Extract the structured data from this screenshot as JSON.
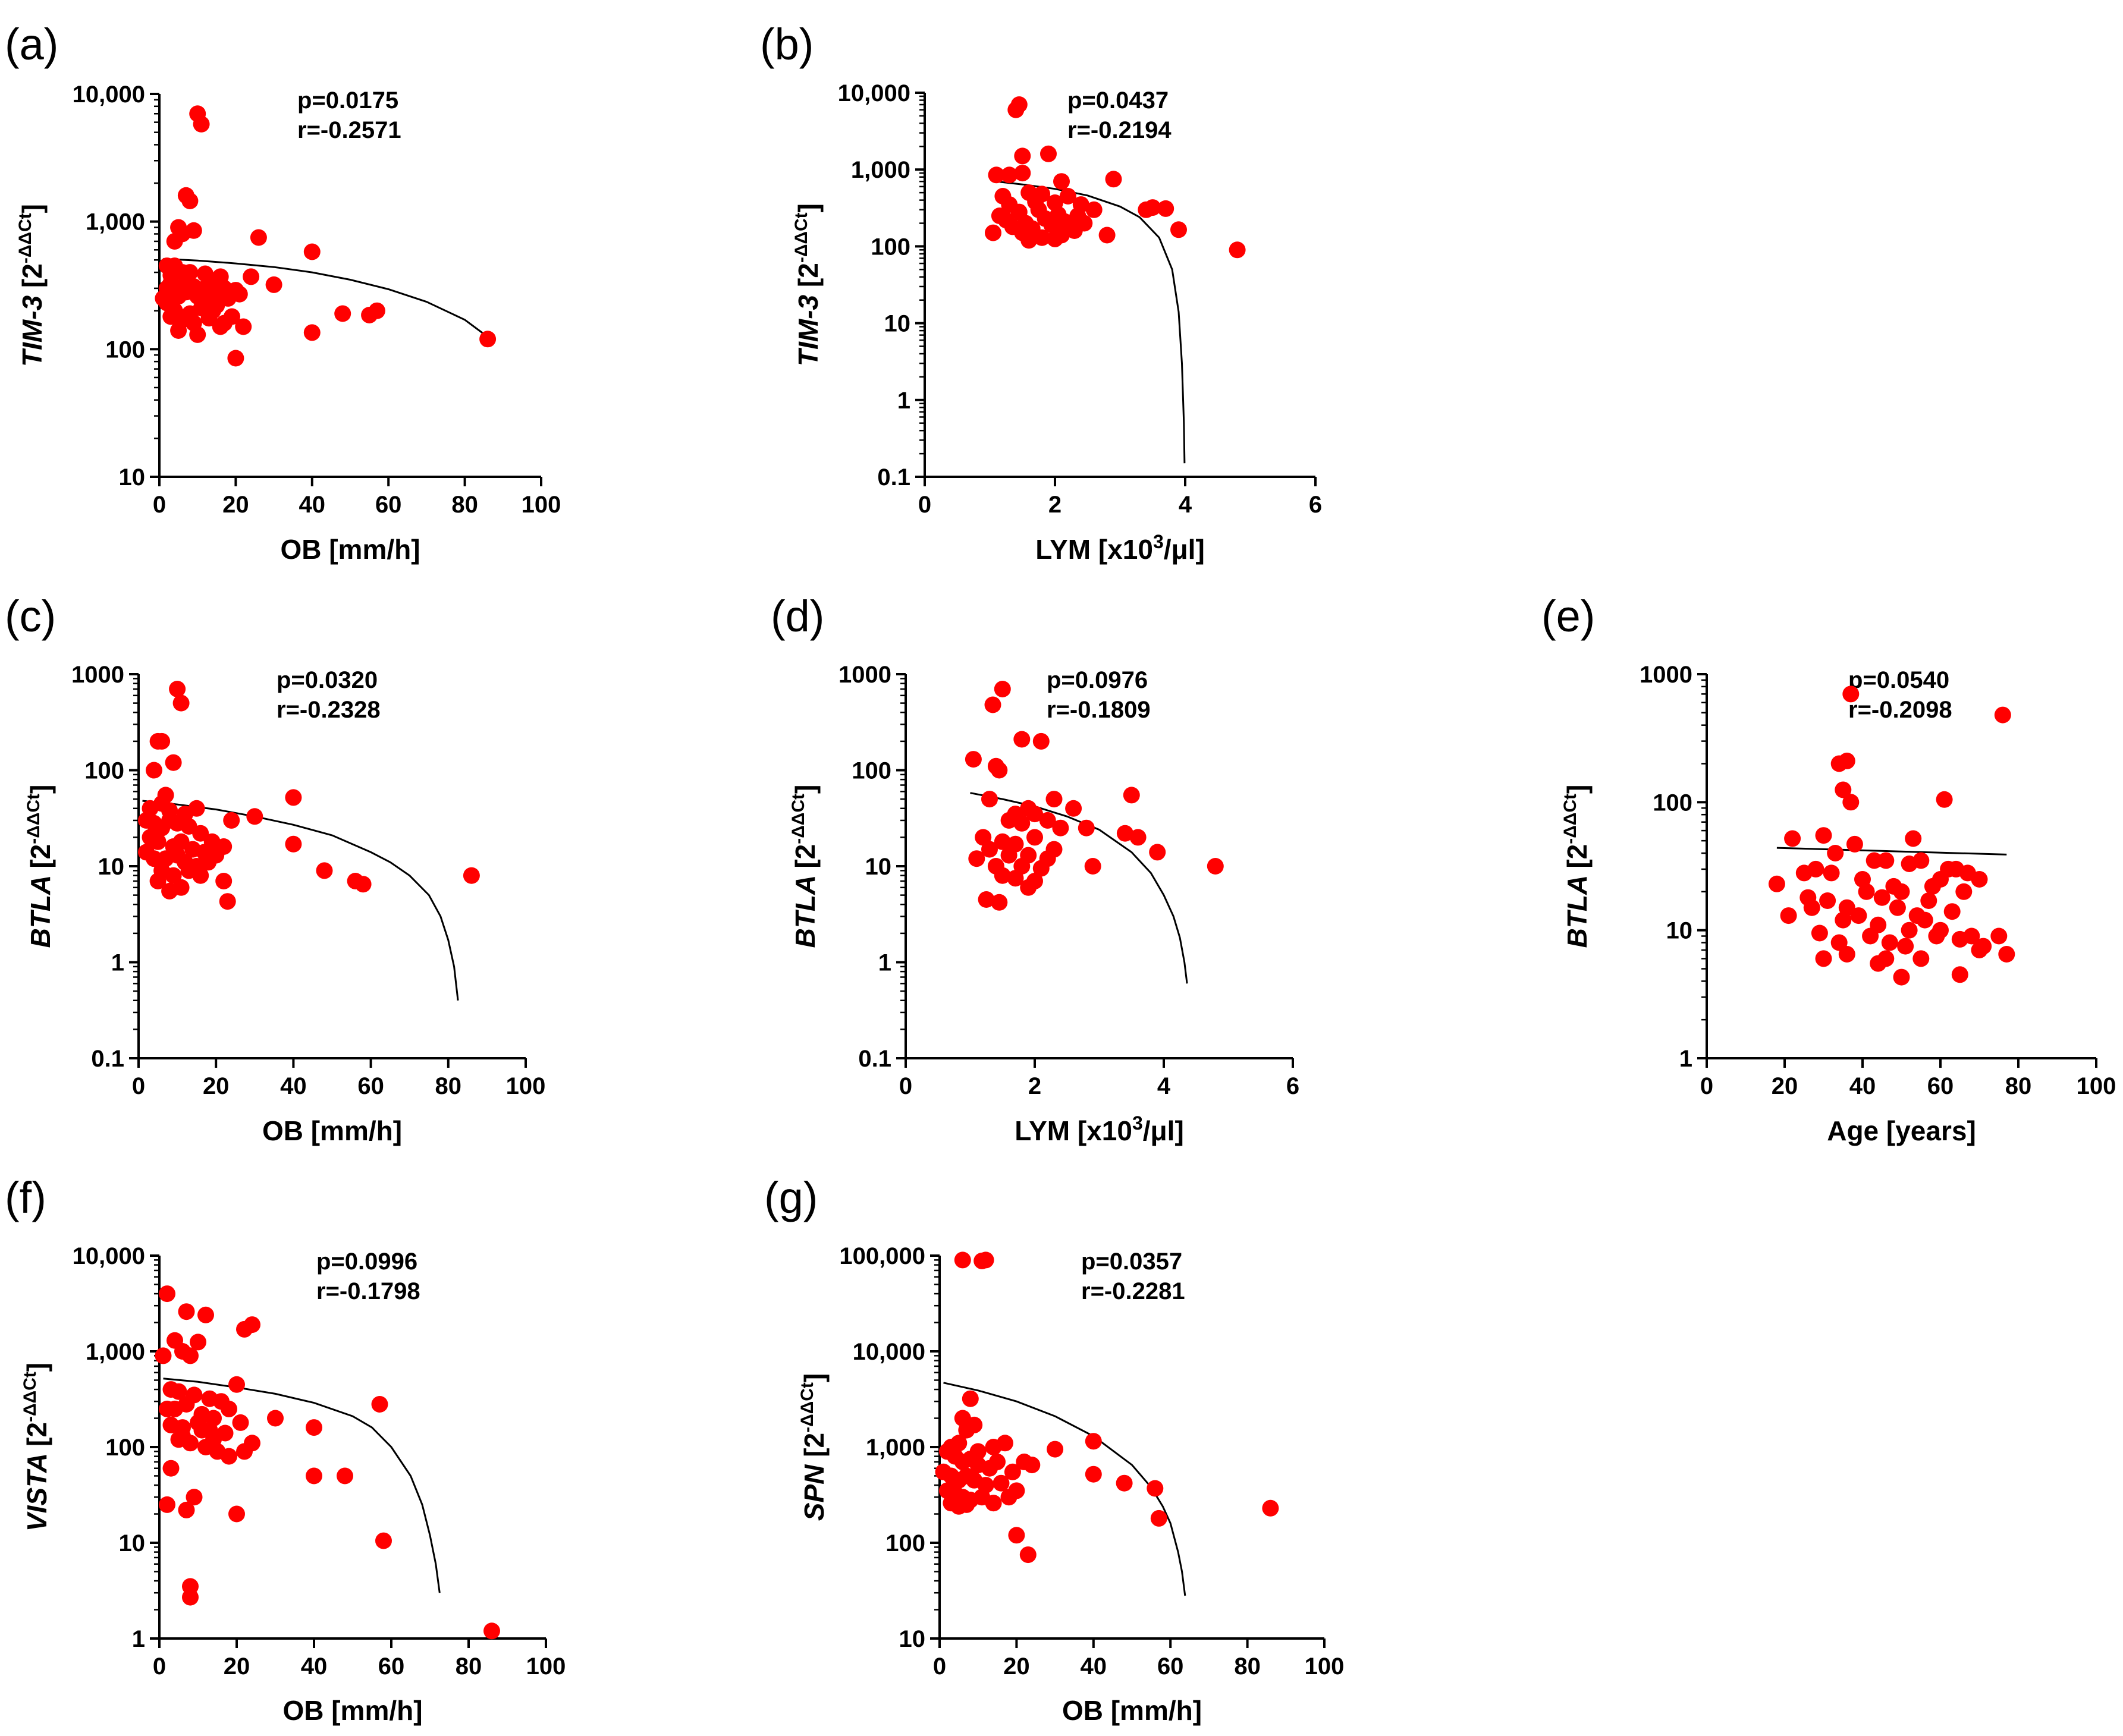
{
  "figure": {
    "point_color": "#ff0000",
    "fit_color": "#000000"
  },
  "chart_data": [
    {
      "panel": "(a)",
      "type": "scatter",
      "yscale": "log",
      "xlabel": "OB [mm/h]",
      "ylabel_gene": "TIM-3",
      "ylabel_unit": "[2",
      "ylabel_exp": "-ΔΔCt",
      "ylabel_close": "]",
      "stats": [
        "p=0.0175",
        "r=-0.2571"
      ],
      "xlim": [
        0,
        100
      ],
      "ylim": [
        10,
        10000
      ],
      "xticks": [
        0,
        20,
        40,
        60,
        80,
        100
      ],
      "xtick_labels": [
        "0",
        "20",
        "40",
        "60",
        "80",
        "100"
      ],
      "yticks": [
        10,
        100,
        1000,
        10000
      ],
      "ytick_labels": [
        "10",
        "100",
        "1,000",
        "10,000"
      ],
      "x": [
        10,
        11,
        7,
        8,
        5,
        6,
        4,
        9,
        26,
        40,
        2,
        4,
        8,
        6,
        3,
        12,
        16,
        3,
        5,
        9,
        13,
        17,
        20,
        24,
        30,
        1,
        2,
        5,
        7,
        10,
        12,
        15,
        18,
        21,
        4,
        8,
        11,
        14,
        19,
        3,
        6,
        9,
        13,
        17,
        22,
        5,
        10,
        16,
        48,
        55,
        57,
        40,
        86,
        20,
        2,
        4,
        7,
        12,
        15
      ],
      "y": [
        7000,
        5800,
        1600,
        1450,
        900,
        800,
        700,
        850,
        750,
        580,
        450,
        450,
        400,
        400,
        380,
        390,
        370,
        330,
        300,
        310,
        320,
        300,
        290,
        370,
        320,
        250,
        230,
        260,
        280,
        260,
        240,
        220,
        250,
        270,
        200,
        190,
        210,
        200,
        180,
        180,
        170,
        160,
        175,
        160,
        150,
        140,
        130,
        150,
        190,
        185,
        200,
        135,
        120,
        85,
        300,
        280,
        330,
        300,
        270
      ],
      "fit": {
        "x": [
          1,
          10,
          20,
          30,
          40,
          50,
          60,
          70,
          80,
          86
        ],
        "y": [
          510,
          495,
          470,
          440,
          400,
          350,
          295,
          235,
          170,
          125
        ]
      }
    },
    {
      "panel": "(b)",
      "type": "scatter",
      "yscale": "log",
      "xlabel": "LYM [x10",
      "xlabel_exp": "3",
      "xlabel_tail": "/μl]",
      "ylabel_gene": "TIM-3",
      "ylabel_unit": "[2",
      "ylabel_exp": "-ΔΔCt",
      "ylabel_close": "]",
      "stats": [
        "p=0.0437",
        "r=-0.2194"
      ],
      "xlim": [
        0,
        6
      ],
      "ylim": [
        0.1,
        10000
      ],
      "xticks": [
        0,
        2,
        4,
        6
      ],
      "xtick_labels": [
        "0",
        "2",
        "4",
        "6"
      ],
      "yticks": [
        0.1,
        1,
        10,
        100,
        1000,
        10000
      ],
      "ytick_labels": [
        "0.1",
        "1",
        "10",
        "100",
        "1,000",
        "10,000"
      ],
      "x": [
        1.45,
        1.4,
        1.5,
        1.9,
        1.1,
        1.3,
        1.5,
        2.1,
        2.9,
        1.2,
        1.6,
        1.8,
        2.2,
        2.6,
        3.4,
        3.5,
        3.7,
        1.3,
        1.7,
        2.0,
        2.4,
        1.15,
        1.45,
        1.75,
        2.05,
        2.35,
        1.25,
        1.55,
        1.85,
        2.15,
        2.45,
        1.35,
        1.65,
        1.95,
        2.25,
        1.05,
        1.5,
        1.8,
        2.1,
        2.8,
        3.9,
        4.8,
        1.6,
        2.0,
        2.3
      ],
      "y": [
        7000,
        6000,
        1500,
        1600,
        850,
        850,
        900,
        700,
        750,
        450,
        500,
        480,
        450,
        300,
        300,
        320,
        310,
        350,
        380,
        370,
        350,
        250,
        280,
        300,
        260,
        250,
        220,
        200,
        230,
        210,
        200,
        180,
        170,
        190,
        175,
        150,
        150,
        130,
        140,
        140,
        165,
        90,
        120,
        125,
        160
      ],
      "fit": {
        "x": [
          1.1,
          1.5,
          2.0,
          2.5,
          3.0,
          3.3,
          3.6,
          3.8,
          3.9,
          3.95,
          3.98,
          3.99
        ],
        "y": [
          700,
          640,
          560,
          460,
          330,
          240,
          130,
          50,
          14,
          3,
          0.5,
          0.15
        ]
      }
    },
    {
      "panel": "(c)",
      "type": "scatter",
      "yscale": "log",
      "xlabel": "OB [mm/h]",
      "ylabel_gene": "BTLA",
      "ylabel_unit": "[2",
      "ylabel_exp": "-ΔΔCt",
      "ylabel_close": "]",
      "stats": [
        "p=0.0320",
        "r=-0.2328"
      ],
      "xlim": [
        0,
        100
      ],
      "ylim": [
        0.1,
        1000
      ],
      "xticks": [
        0,
        20,
        40,
        60,
        80,
        100
      ],
      "xtick_labels": [
        "0",
        "20",
        "40",
        "60",
        "80",
        "100"
      ],
      "yticks": [
        0.1,
        1,
        10,
        100,
        1000
      ],
      "ytick_labels": [
        "0.1",
        "1",
        "10",
        "100",
        "1000"
      ],
      "x": [
        10,
        11,
        5,
        6,
        9,
        4,
        40,
        7,
        6,
        3,
        8,
        12,
        15,
        30,
        24,
        2,
        4,
        6,
        8,
        10,
        13,
        16,
        19,
        22,
        3,
        5,
        9,
        11,
        14,
        17,
        20,
        2,
        4,
        7,
        10,
        12,
        15,
        18,
        6,
        9,
        13,
        16,
        22,
        5,
        40,
        48,
        56,
        58,
        86,
        23,
        8,
        11
      ],
      "y": [
        700,
        500,
        200,
        200,
        120,
        100,
        52,
        55,
        45,
        40,
        38,
        35,
        40,
        33,
        30,
        30,
        28,
        25,
        30,
        28,
        26,
        22,
        18,
        16,
        20,
        18,
        16,
        18,
        15,
        14,
        13,
        14,
        12,
        12,
        13,
        11,
        10,
        11,
        9,
        8,
        9,
        8,
        7,
        7,
        17,
        9,
        7,
        6.5,
        8,
        4.3,
        5.5,
        6
      ],
      "fit": {
        "x": [
          1,
          10,
          20,
          30,
          40,
          50,
          60,
          65,
          70,
          75,
          78,
          80,
          81.5,
          82.5
        ],
        "y": [
          48,
          44,
          39,
          33,
          27,
          21,
          14,
          11,
          8,
          5,
          3,
          1.7,
          0.9,
          0.4
        ]
      }
    },
    {
      "panel": "(d)",
      "type": "scatter",
      "yscale": "log",
      "xlabel": "LYM [x10",
      "xlabel_exp": "3",
      "xlabel_tail": "/μl]",
      "ylabel_gene": "BTLA",
      "ylabel_unit": "[2",
      "ylabel_exp": "-ΔΔCt",
      "ylabel_close": "]",
      "stats": [
        "p=0.0976",
        "r=-0.1809"
      ],
      "xlim": [
        0,
        6
      ],
      "ylim": [
        0.1,
        1000
      ],
      "xticks": [
        0,
        2,
        4,
        6
      ],
      "xtick_labels": [
        "0",
        "2",
        "4",
        "6"
      ],
      "yticks": [
        0.1,
        1,
        10,
        100,
        1000
      ],
      "ytick_labels": [
        "0.1",
        "1",
        "10",
        "100",
        "1000"
      ],
      "x": [
        1.5,
        1.35,
        1.8,
        2.1,
        1.05,
        1.4,
        1.45,
        3.5,
        1.3,
        2.3,
        2.6,
        1.9,
        1.7,
        2.0,
        2.2,
        1.6,
        1.8,
        2.4,
        2.8,
        3.4,
        3.6,
        1.2,
        1.5,
        1.7,
        2.0,
        2.3,
        1.3,
        1.6,
        1.9,
        2.2,
        1.1,
        1.4,
        1.8,
        2.1,
        2.9,
        3.9,
        4.8,
        1.5,
        1.7,
        2.0,
        1.25,
        1.45,
        1.9
      ],
      "y": [
        700,
        480,
        210,
        200,
        130,
        110,
        100,
        55,
        50,
        50,
        40,
        40,
        35,
        35,
        30,
        30,
        28,
        25,
        25,
        22,
        20,
        20,
        18,
        17,
        20,
        15,
        15,
        13,
        13,
        12,
        12,
        10,
        10,
        9.5,
        10,
        14,
        10,
        8,
        7.5,
        7,
        4.5,
        4.2,
        6
      ],
      "fit": {
        "x": [
          1.0,
          1.5,
          2.0,
          2.5,
          3.0,
          3.5,
          3.8,
          4.0,
          4.15,
          4.25,
          4.32,
          4.36
        ],
        "y": [
          58,
          50,
          42,
          33,
          24,
          14,
          8.5,
          5,
          3,
          1.8,
          1.0,
          0.6
        ]
      }
    },
    {
      "panel": "(e)",
      "type": "scatter",
      "yscale": "log",
      "xlabel": "Age [years]",
      "ylabel_gene": "BTLA",
      "ylabel_unit": "[2",
      "ylabel_exp": "-ΔΔCt",
      "ylabel_close": "]",
      "stats": [
        "p=0.0540",
        "r=-0.2098"
      ],
      "xlim": [
        0,
        100
      ],
      "ylim": [
        1,
        1000
      ],
      "xticks": [
        0,
        20,
        40,
        60,
        80,
        100
      ],
      "xtick_labels": [
        "0",
        "20",
        "40",
        "60",
        "80",
        "100"
      ],
      "yticks": [
        1,
        10,
        100,
        1000
      ],
      "ytick_labels": [
        "1",
        "10",
        "100",
        "1000"
      ],
      "x": [
        37,
        76,
        34,
        36,
        35,
        37,
        61,
        22,
        30,
        53,
        38,
        33,
        43,
        46,
        52,
        55,
        64,
        67,
        70,
        18,
        25,
        28,
        32,
        40,
        48,
        50,
        58,
        60,
        62,
        26,
        31,
        36,
        41,
        45,
        49,
        54,
        57,
        66,
        21,
        27,
        35,
        39,
        44,
        52,
        56,
        60,
        63,
        68,
        29,
        34,
        42,
        47,
        51,
        59,
        65,
        71,
        75,
        30,
        36,
        46,
        55,
        70,
        77,
        44,
        50,
        65
      ],
      "y": [
        700,
        480,
        200,
        210,
        125,
        100,
        105,
        52,
        55,
        52,
        47,
        40,
        35,
        35,
        33,
        35,
        30,
        28,
        25,
        23,
        28,
        30,
        28,
        25,
        22,
        20,
        22,
        25,
        30,
        18,
        17,
        15,
        20,
        18,
        15,
        13,
        17,
        20,
        13,
        15,
        12,
        13,
        11,
        10,
        12,
        10,
        14,
        9,
        9.5,
        8,
        9,
        8,
        7.5,
        9,
        8.5,
        7.5,
        9,
        6,
        6.5,
        6,
        6,
        7,
        6.5,
        5.5,
        4.3,
        4.5
      ],
      "fit": {
        "x": [
          18,
          77
        ],
        "y": [
          44,
          39
        ]
      }
    },
    {
      "panel": "(f)",
      "type": "scatter",
      "yscale": "log",
      "xlabel": "OB [mm/h]",
      "ylabel_gene": "VISTA",
      "ylabel_unit": "[2",
      "ylabel_exp": "-ΔΔCt",
      "ylabel_close": "]",
      "stats": [
        "p=0.0996",
        "r=-0.1798"
      ],
      "xlim": [
        0,
        100
      ],
      "ylim": [
        1,
        10000
      ],
      "xticks": [
        0,
        20,
        40,
        60,
        80,
        100
      ],
      "xtick_labels": [
        "0",
        "20",
        "40",
        "60",
        "80",
        "100"
      ],
      "yticks": [
        1,
        10,
        100,
        1000,
        10000
      ],
      "ytick_labels": [
        "1",
        "10",
        "100",
        "1,000",
        "10,000"
      ],
      "x": [
        2,
        7,
        12,
        24,
        22,
        4,
        10,
        6,
        8,
        1,
        3,
        20,
        57,
        30,
        5,
        9,
        13,
        16,
        2,
        4,
        7,
        11,
        14,
        18,
        21,
        3,
        6,
        10,
        13,
        17,
        24,
        40,
        5,
        8,
        12,
        15,
        22,
        40,
        48,
        2,
        7,
        9,
        20,
        18,
        58,
        3,
        8,
        8,
        86,
        11,
        6,
        14
      ],
      "y": [
        4000,
        2600,
        2400,
        1900,
        1700,
        1300,
        1250,
        1000,
        900,
        900,
        400,
        450,
        280,
        200,
        380,
        350,
        320,
        300,
        250,
        250,
        280,
        220,
        200,
        250,
        180,
        170,
        160,
        180,
        150,
        140,
        110,
        160,
        120,
        110,
        100,
        90,
        90,
        50,
        50,
        25,
        22,
        30,
        20,
        80,
        10.5,
        60,
        3.5,
        2.7,
        1.2,
        150,
        130,
        120
      ],
      "fit": {
        "x": [
          1,
          10,
          20,
          30,
          40,
          50,
          55,
          60,
          65,
          68,
          70,
          71.5,
          72.5
        ],
        "y": [
          520,
          480,
          420,
          360,
          290,
          210,
          160,
          100,
          50,
          25,
          12,
          6,
          3
        ]
      }
    },
    {
      "panel": "(g)",
      "type": "scatter",
      "yscale": "log",
      "xlabel": "OB [mm/h]",
      "ylabel_gene": "SPN",
      "ylabel_unit": "[2",
      "ylabel_exp": "-ΔΔCt",
      "ylabel_close": "]",
      "stats": [
        "p=0.0357",
        "r=-0.2281"
      ],
      "xlim": [
        0,
        100
      ],
      "ylim": [
        10,
        100000
      ],
      "xticks": [
        0,
        20,
        40,
        60,
        80,
        100
      ],
      "xtick_labels": [
        "0",
        "20",
        "40",
        "60",
        "80",
        "100"
      ],
      "yticks": [
        10,
        100,
        1000,
        10000,
        100000
      ],
      "ytick_labels": [
        "10",
        "100",
        "1,000",
        "10,000",
        "100,000"
      ],
      "x": [
        6,
        11,
        12,
        8,
        6,
        7,
        9,
        3,
        5,
        10,
        14,
        17,
        24,
        30,
        40,
        2,
        4,
        6,
        8,
        10,
        13,
        15,
        19,
        22,
        1,
        3,
        5,
        7,
        9,
        12,
        16,
        20,
        2,
        4,
        6,
        8,
        11,
        14,
        18,
        40,
        48,
        56,
        57,
        86,
        20,
        23,
        3,
        5,
        7
      ],
      "y": [
        90000,
        88000,
        90000,
        3200,
        2000,
        1500,
        1700,
        1000,
        1100,
        900,
        1000,
        1100,
        650,
        950,
        1150,
        900,
        800,
        700,
        750,
        650,
        600,
        700,
        550,
        700,
        550,
        500,
        450,
        500,
        450,
        400,
        420,
        350,
        350,
        330,
        300,
        280,
        300,
        260,
        300,
        520,
        420,
        370,
        180,
        230,
        120,
        75,
        260,
        240,
        250
      ],
      "fit": {
        "x": [
          1,
          10,
          20,
          30,
          40,
          50,
          55,
          58,
          60,
          62,
          63,
          63.8
        ],
        "y": [
          4700,
          3900,
          3000,
          2100,
          1300,
          650,
          380,
          240,
          160,
          80,
          50,
          28
        ]
      }
    }
  ]
}
